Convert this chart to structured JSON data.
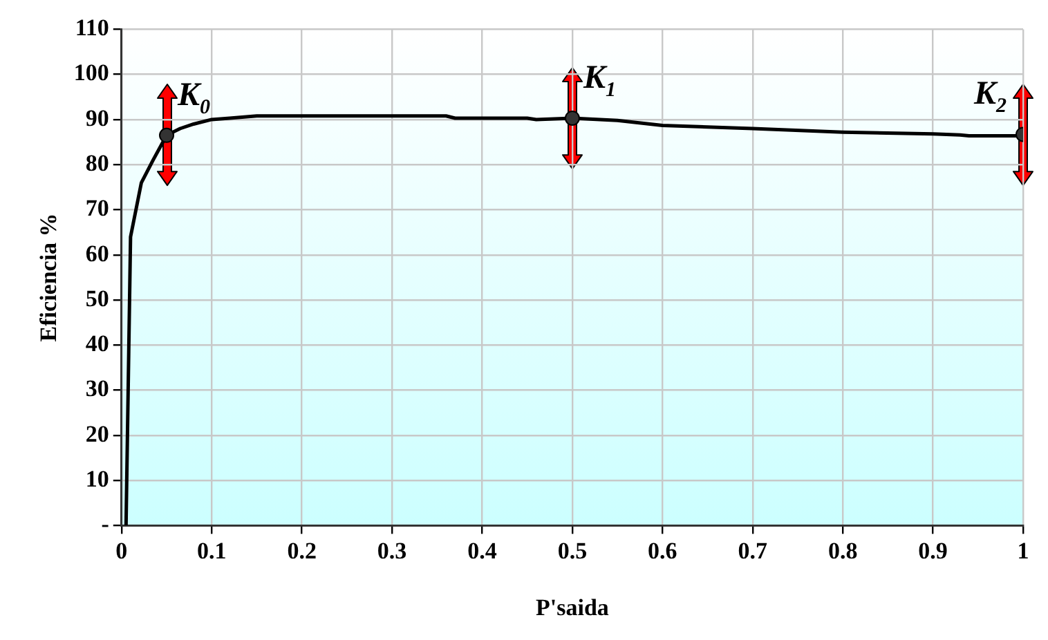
{
  "chart_data": {
    "type": "line",
    "xlabel": "P'saida",
    "ylabel": "Eficiencia %",
    "xlim": [
      0,
      1
    ],
    "xticks": [
      0,
      0.1,
      0.2,
      0.3,
      0.4,
      0.5,
      0.6,
      0.7,
      0.8,
      0.9,
      1
    ],
    "ylim": [
      0,
      110
    ],
    "yticks": [
      {
        "value": 0,
        "label": "-"
      },
      10,
      20,
      30,
      40,
      50,
      60,
      70,
      80,
      90,
      100,
      110
    ],
    "grid": true,
    "legend": false,
    "marker": "none",
    "line_style": "solid",
    "series": [
      {
        "type": "line",
        "color": "#000000",
        "x": [
          0.005,
          0.01,
          0.022,
          0.035,
          0.05,
          0.065,
          0.08,
          0.1,
          0.12,
          0.15,
          0.2,
          0.3,
          0.36,
          0.37,
          0.45,
          0.46,
          0.5,
          0.55,
          0.6,
          0.7,
          0.8,
          0.9,
          0.93,
          0.94,
          1
        ],
        "values": [
          0,
          64,
          76,
          81,
          86.5,
          88,
          89,
          90,
          90.3,
          90.8,
          90.8,
          90.8,
          90.8,
          90.3,
          90.3,
          90,
          90.3,
          89.8,
          88.7,
          88,
          87.2,
          86.8,
          86.6,
          86.4,
          86.4
        ]
      },
      {
        "type": "scatter",
        "color": "#333333",
        "marker": "circle",
        "x": [
          0.05,
          0.5,
          1
        ],
        "values": [
          86.5,
          90.3,
          86.7
        ]
      }
    ],
    "annotations": [
      {
        "text": "K$_{0}$",
        "x": 0.05,
        "y": 86.5
      },
      {
        "text": "K$_{1}$",
        "x": 0.5,
        "y": 90.3
      },
      {
        "text": "K$_{2}$",
        "x": 1,
        "y": 86.7
      }
    ]
  }
}
